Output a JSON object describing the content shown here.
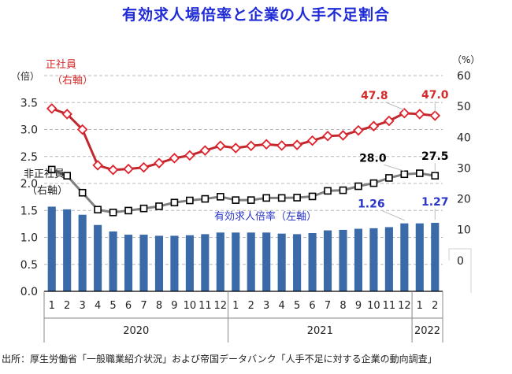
{
  "title": "有効求人場倍率と企業の人手不足割合",
  "source": "出所：厚生労働省「一般職業紹介状況」および帝国データバンク「人手不足に対する企業の動向調査」",
  "chart_data": {
    "type": "bar",
    "left_axis": {
      "unit": "（倍）",
      "range": [
        0,
        4
      ],
      "ticks": [
        "0.0",
        "0.5",
        "1.0",
        "1.5",
        "2.0",
        "2.5",
        "3.0",
        "3.5"
      ]
    },
    "right_axis": {
      "unit": "（%）",
      "range": [
        -10,
        60
      ],
      "ticks": [
        "0",
        "10",
        "20",
        "30",
        "40",
        "50",
        "60"
      ]
    },
    "categories": [
      "1",
      "2",
      "3",
      "4",
      "5",
      "6",
      "7",
      "8",
      "9",
      "10",
      "11",
      "12",
      "1",
      "2",
      "3",
      "4",
      "5",
      "6",
      "7",
      "8",
      "9",
      "10",
      "11",
      "12",
      "1",
      "2"
    ],
    "years": [
      {
        "label": "2020",
        "from": 0,
        "to": 11
      },
      {
        "label": "2021",
        "from": 12,
        "to": 23
      },
      {
        "label": "2022",
        "from": 24,
        "to": 25
      }
    ],
    "series": [
      {
        "name": "有効求人倍率（左軸）",
        "kind": "bar",
        "axis": "left",
        "color": "#3b6aa8",
        "values": [
          1.57,
          1.52,
          1.42,
          1.23,
          1.11,
          1.05,
          1.05,
          1.03,
          1.03,
          1.04,
          1.06,
          1.09,
          1.09,
          1.09,
          1.09,
          1.07,
          1.06,
          1.08,
          1.13,
          1.14,
          1.16,
          1.17,
          1.19,
          1.26,
          1.26,
          1.27
        ]
      },
      {
        "name": "正社員",
        "axis_label": "（右軸）",
        "kind": "line",
        "axis": "right",
        "color": "#c0282d",
        "marker_stroke": "#e0202a",
        "values": [
          49.3,
          47.5,
          42.5,
          30.9,
          29.4,
          29.7,
          30.2,
          31.6,
          33.2,
          34.1,
          35.7,
          37.2,
          36.5,
          37.2,
          37.7,
          37.3,
          37.5,
          38.9,
          40.4,
          40.6,
          42.2,
          43.6,
          45.3,
          47.8,
          47.5,
          47.0
        ]
      },
      {
        "name": "非正社員",
        "axis_label": "（右軸）",
        "kind": "line",
        "axis": "right",
        "color": "#808080",
        "marker_stroke": "#000000",
        "values": [
          29.5,
          27.5,
          22.0,
          16.5,
          15.6,
          16.2,
          16.9,
          17.6,
          18.8,
          19.5,
          20.0,
          20.7,
          19.6,
          19.6,
          20.3,
          20.3,
          20.4,
          20.8,
          22.6,
          22.8,
          24.1,
          25.1,
          26.8,
          28.0,
          28.3,
          27.5
        ]
      }
    ],
    "data_labels": [
      {
        "series": 1,
        "index": 23,
        "text": "47.8"
      },
      {
        "series": 1,
        "index": 25,
        "text": "47.0"
      },
      {
        "series": 2,
        "index": 23,
        "text": "28.0"
      },
      {
        "series": 2,
        "index": 25,
        "text": "27.5"
      },
      {
        "series": 0,
        "index": 23,
        "text": "1.26"
      },
      {
        "series": 0,
        "index": 25,
        "text": "1.27"
      }
    ],
    "grid": true,
    "gridlines": "dashed"
  }
}
